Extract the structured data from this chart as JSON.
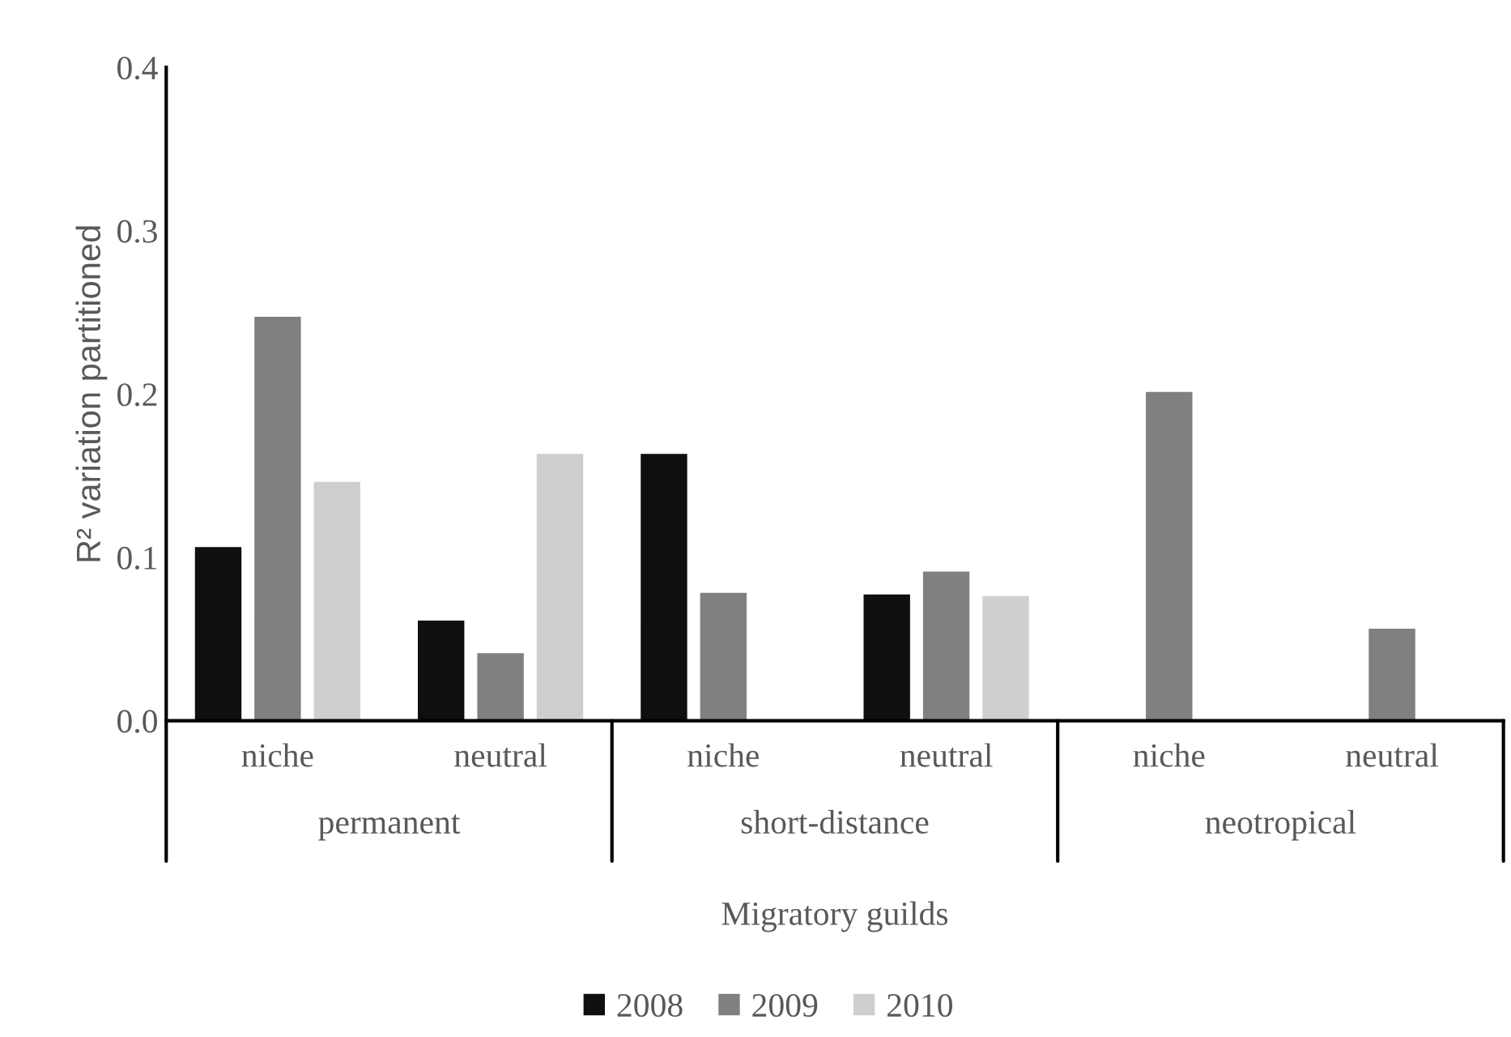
{
  "chart_data": {
    "type": "bar",
    "categories": [
      "niche",
      "neutral",
      "niche",
      "neutral",
      "niche",
      "neutral"
    ],
    "series": [
      {
        "name": "2008",
        "color": "#0f0f0f",
        "values": [
          0.107,
          0.062,
          0.164,
          0.078,
          null,
          null
        ]
      },
      {
        "name": "2009",
        "color": "#808080",
        "values": [
          0.248,
          0.042,
          0.079,
          0.092,
          0.202,
          0.057
        ]
      },
      {
        "name": "2010",
        "color": "#d0cfd0",
        "values": [
          0.147,
          0.164,
          null,
          0.077,
          null,
          null
        ]
      }
    ],
    "xlabel": "Migratory guilds",
    "ylabel": "R² variation partitioned",
    "annotations": [
      "permanent",
      "short-distance",
      "neotropical"
    ],
    "ylim": [
      0,
      0.4
    ],
    "yticks": [
      {
        "value": 0,
        "label": "0.0"
      },
      0.1,
      0.2,
      0.3,
      0.4
    ],
    "grid": false,
    "legend": "bottom"
  }
}
